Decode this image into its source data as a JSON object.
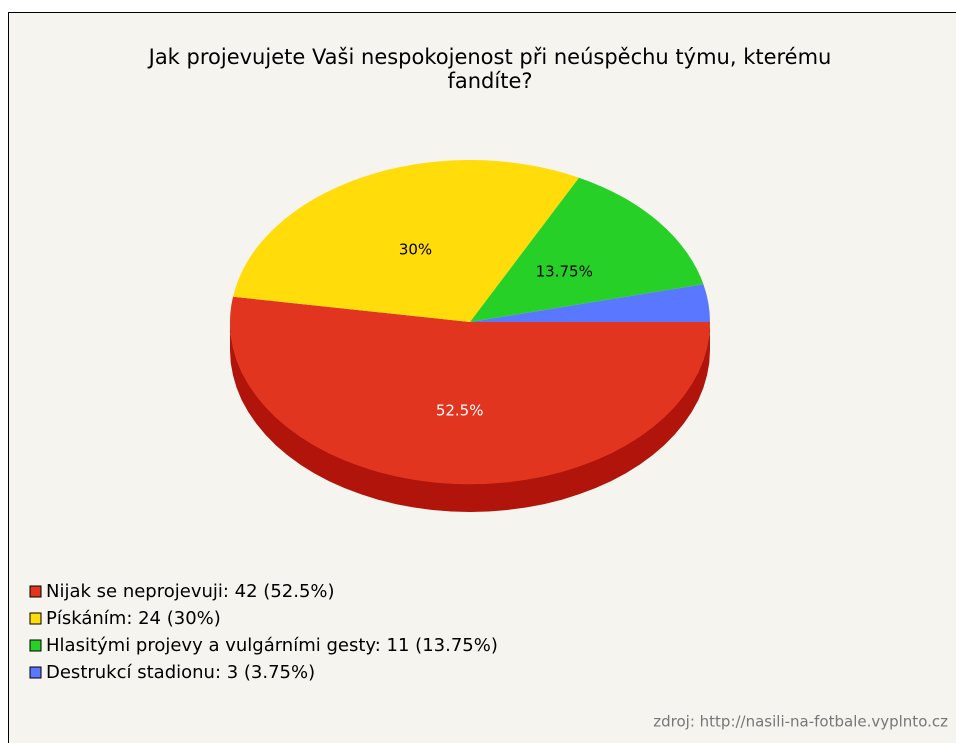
{
  "chart_data": {
    "type": "pie",
    "title": "Jak projevujete Vaši nespokojenost při neúspěchu týmu, kterému fandíte?",
    "categories": [
      "Nijak se neprojevuji: 42 (52.5%)",
      "Pískáním: 24 (30%)",
      "Hlasitými projevy a vulgárními gesty: 11 (13.75%)",
      "Destrukcí stadionu: 3 (3.75%)"
    ],
    "values": [
      52.5,
      30,
      13.75,
      3.75
    ],
    "value_labels": [
      "52.5%",
      "30%",
      "13.75%",
      null
    ],
    "colors": [
      "#e2351f",
      "#ffdc0a",
      "#27d027",
      "#5a78ff"
    ],
    "side_colors": [
      "#b0140a",
      "#c8a800",
      "#129a12",
      "#2f48c0"
    ],
    "label_colors": [
      "#ffffff",
      "#000000",
      "#000000",
      "#000000"
    ],
    "legend": "bottom-left",
    "source": "zdroj: http://nasili-na-fotbale.vyplnto.cz"
  }
}
